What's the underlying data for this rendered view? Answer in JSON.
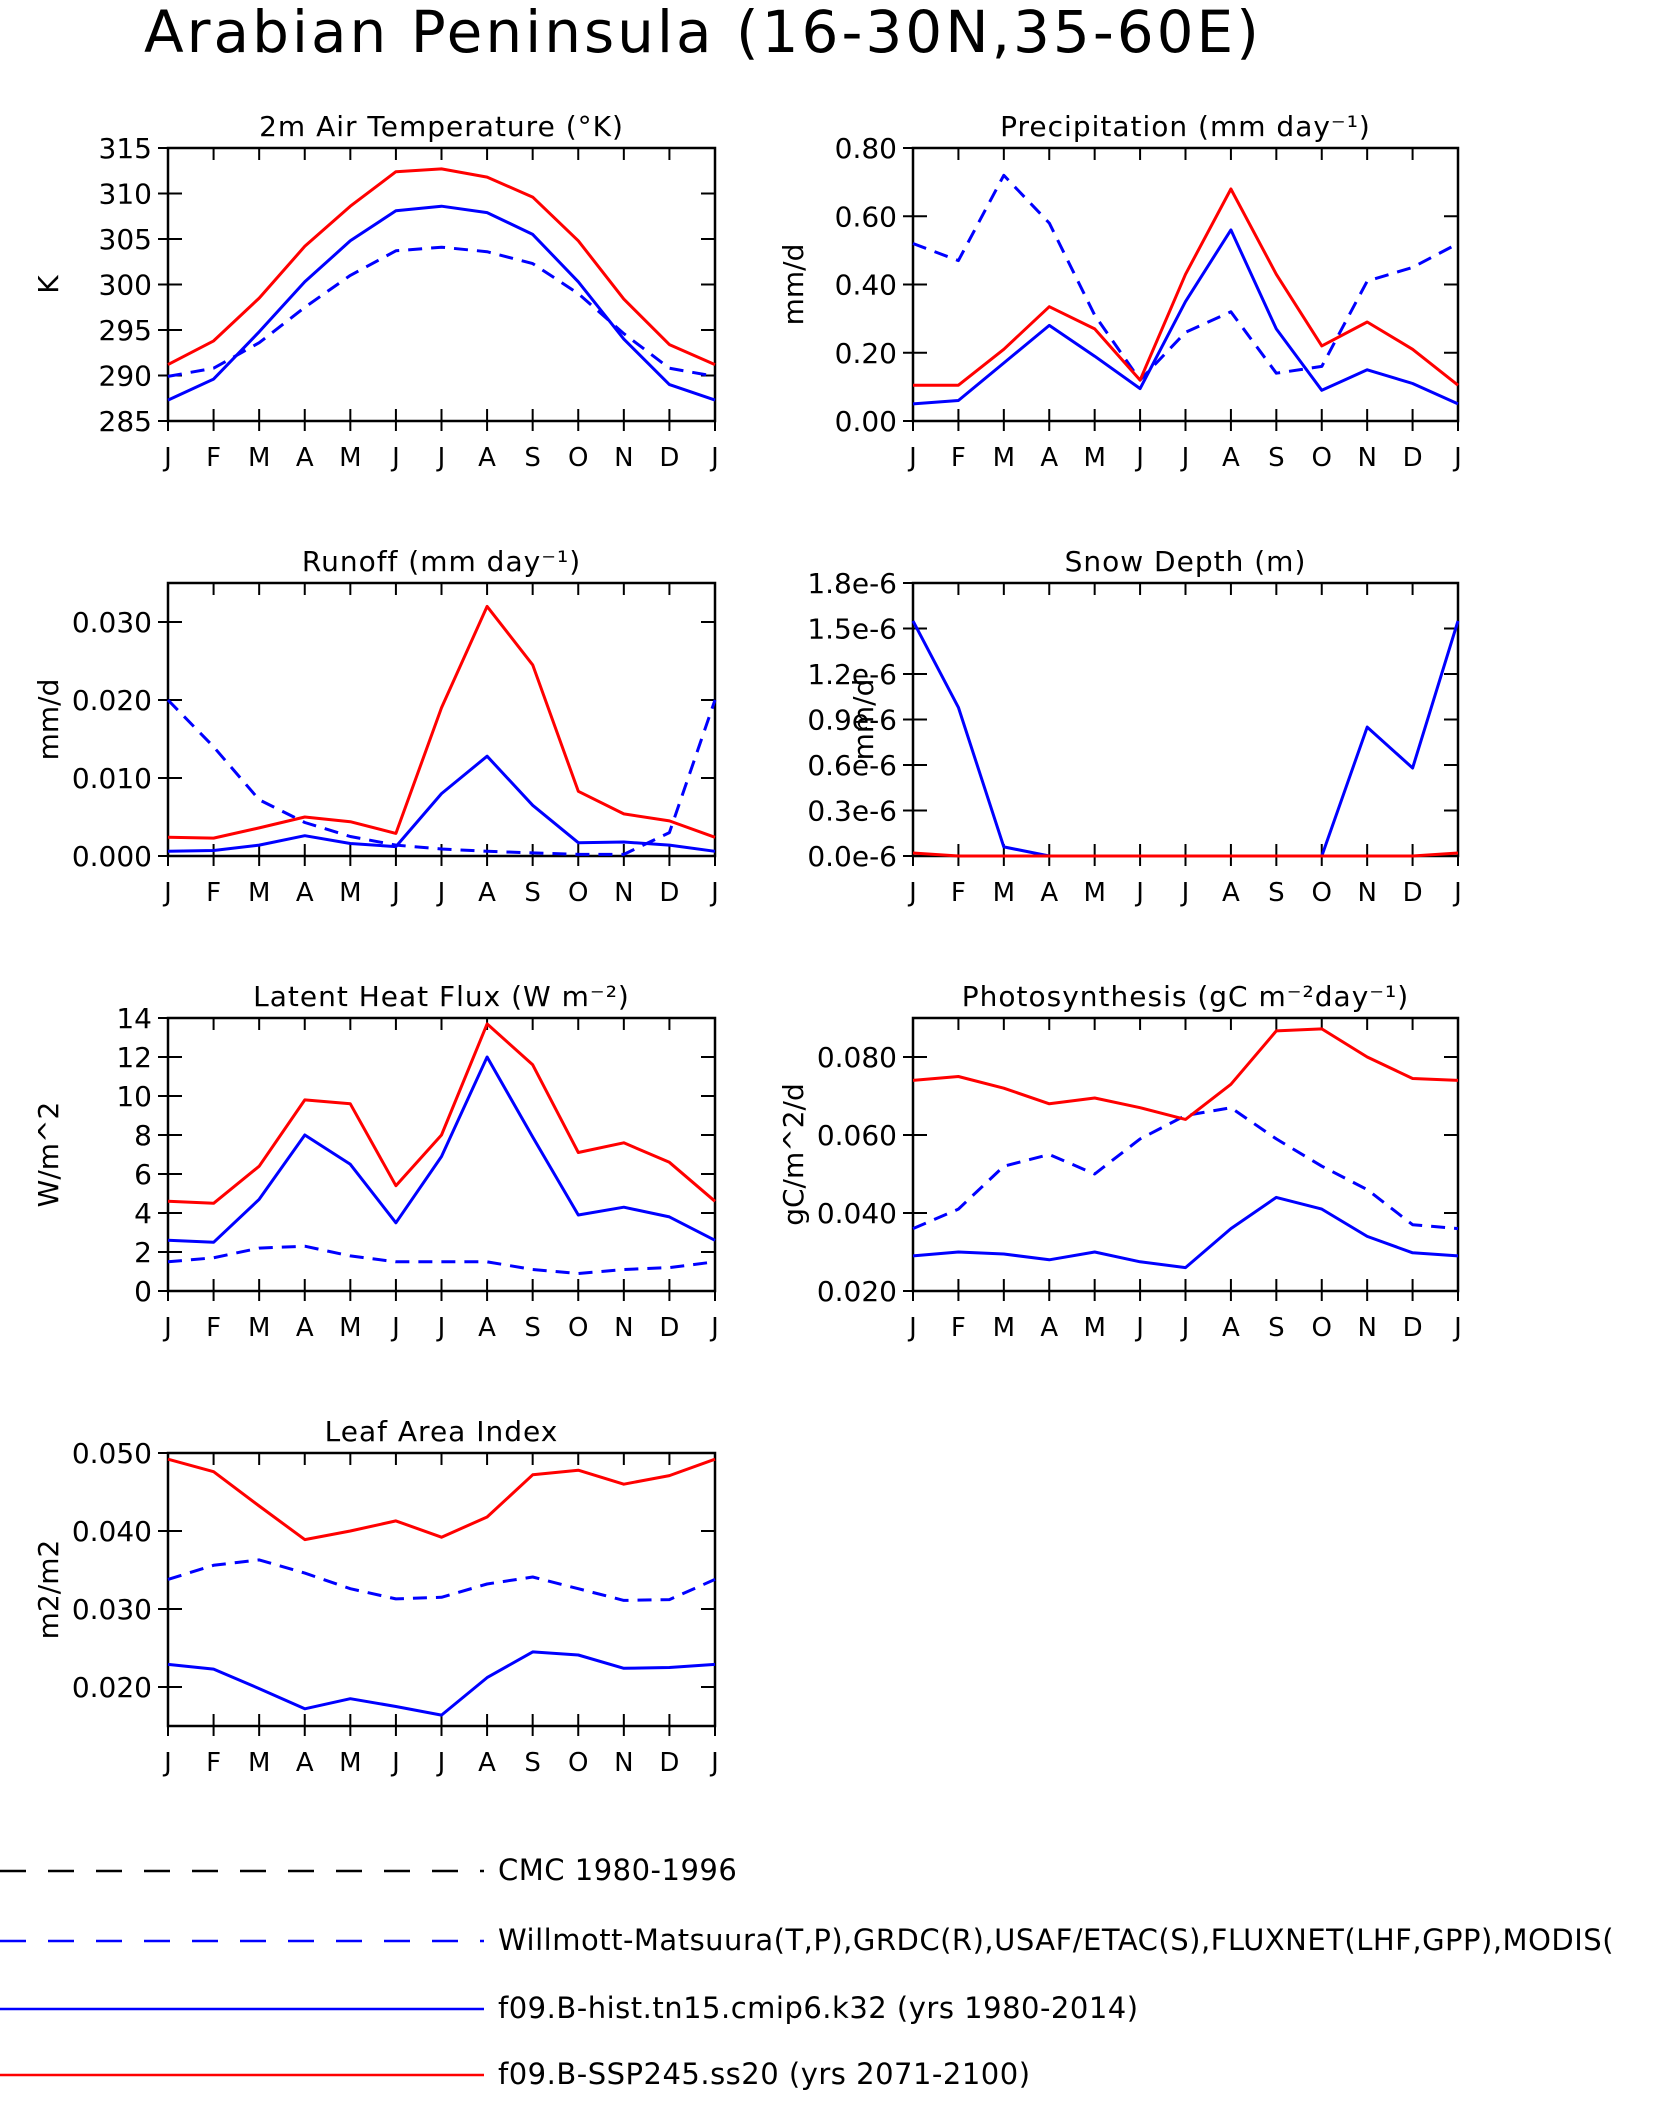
{
  "title": "Arabian Peninsula (16-30N,35-60E)",
  "months": [
    "J",
    "F",
    "M",
    "A",
    "M",
    "J",
    "J",
    "A",
    "S",
    "O",
    "N",
    "D",
    "J"
  ],
  "colors": {
    "obs": "#0000ff",
    "hist": "#0000ff",
    "ssp": "#ff0000",
    "cmc": "#000000"
  },
  "legend": [
    {
      "label": "CMC 1980-1996",
      "color": "#000000",
      "dash": true
    },
    {
      "label": "Willmott-Matsuura(T,P),GRDC(R),USAF/ETAC(S),FLUXNET(LHF,GPP),MODIS(",
      "color": "#0000ff",
      "dash": true
    },
    {
      "label": "f09.B-hist.tn15.cmip6.k32 (yrs 1980-2014)",
      "color": "#0000ff",
      "dash": false
    },
    {
      "label": "f09.B-SSP245.ss20 (yrs 2071-2100)",
      "color": "#ff0000",
      "dash": false
    }
  ],
  "chart_data": [
    {
      "type": "line",
      "title": "2m Air Temperature (°K)",
      "ylabel": "K",
      "ylim": [
        285,
        315
      ],
      "yticks": [
        "285",
        "290",
        "295",
        "300",
        "305",
        "310",
        "315"
      ],
      "series": [
        {
          "key": "obs",
          "values": [
            289.9,
            290.8,
            293.6,
            297.5,
            301.0,
            303.7,
            304.1,
            303.6,
            302.3,
            299.0,
            294.6,
            290.8,
            289.9
          ]
        },
        {
          "key": "hist",
          "values": [
            287.3,
            289.6,
            294.8,
            300.3,
            304.8,
            308.1,
            308.6,
            307.9,
            305.5,
            300.3,
            294.0,
            289.0,
            287.3
          ]
        },
        {
          "key": "ssp",
          "values": [
            291.2,
            293.8,
            298.5,
            304.2,
            308.6,
            312.4,
            312.7,
            311.8,
            309.6,
            304.8,
            298.4,
            293.4,
            291.2
          ]
        }
      ]
    },
    {
      "type": "line",
      "title": "Precipitation (mm day⁻¹)",
      "ylabel": "mm/d",
      "ylim": [
        0,
        0.8
      ],
      "yticks": [
        "0.00",
        "0.20",
        "0.40",
        "0.60",
        "0.80"
      ],
      "series": [
        {
          "key": "obs",
          "values": [
            0.52,
            0.47,
            0.72,
            0.58,
            0.31,
            0.12,
            0.26,
            0.32,
            0.14,
            0.16,
            0.41,
            0.45,
            0.52
          ]
        },
        {
          "key": "hist",
          "values": [
            0.05,
            0.06,
            0.17,
            0.28,
            0.19,
            0.095,
            0.35,
            0.56,
            0.27,
            0.09,
            0.15,
            0.11,
            0.05
          ]
        },
        {
          "key": "ssp",
          "values": [
            0.105,
            0.105,
            0.21,
            0.335,
            0.27,
            0.12,
            0.43,
            0.68,
            0.43,
            0.22,
            0.29,
            0.21,
            0.105
          ]
        }
      ]
    },
    {
      "type": "line",
      "title": "Runoff (mm day⁻¹)",
      "ylabel": "mm/d",
      "ylim": [
        0,
        0.035
      ],
      "yticks": [
        "0.000",
        "0.010",
        "0.020",
        "0.030"
      ],
      "series": [
        {
          "key": "obs",
          "values": [
            0.02,
            0.014,
            0.0072,
            0.0043,
            0.0025,
            0.0014,
            0.0009,
            0.0006,
            0.0004,
            0.0002,
            0.0002,
            0.003,
            0.02
          ]
        },
        {
          "key": "hist",
          "values": [
            0.0006,
            0.0007,
            0.0014,
            0.0026,
            0.0016,
            0.0012,
            0.008,
            0.0128,
            0.0065,
            0.0017,
            0.0018,
            0.0014,
            0.0006
          ]
        },
        {
          "key": "ssp",
          "values": [
            0.0024,
            0.0023,
            0.0036,
            0.005,
            0.0044,
            0.0029,
            0.019,
            0.032,
            0.0245,
            0.0083,
            0.0054,
            0.0045,
            0.0024
          ]
        }
      ]
    },
    {
      "type": "line",
      "title": "Snow Depth (m)",
      "ylabel": "mm/d",
      "ylim": [
        0,
        1.8
      ],
      "yticks": [
        "0.0e-6",
        "0.3e-6",
        "0.6e-6",
        "0.9e-6",
        "1.2e-6",
        "1.5e-6",
        "1.8e-6"
      ],
      "series": [
        {
          "key": "hist",
          "values": [
            1.55,
            0.98,
            0.06,
            0,
            0,
            0,
            0,
            0,
            0,
            0,
            0.85,
            0.58,
            1.55
          ]
        },
        {
          "key": "ssp",
          "values": [
            0.02,
            0,
            0,
            0,
            0,
            0,
            0,
            0,
            0,
            0,
            0,
            0,
            0.02
          ]
        }
      ]
    },
    {
      "type": "line",
      "title": "Latent Heat Flux (W m⁻²)",
      "ylabel": "W/m^2",
      "ylim": [
        0,
        14
      ],
      "yticks": [
        "0",
        "2",
        "4",
        "6",
        "8",
        "10",
        "12",
        "14"
      ],
      "series": [
        {
          "key": "obs",
          "values": [
            1.5,
            1.7,
            2.2,
            2.3,
            1.8,
            1.5,
            1.5,
            1.5,
            1.1,
            0.9,
            1.1,
            1.2,
            1.5
          ]
        },
        {
          "key": "hist",
          "values": [
            2.6,
            2.5,
            4.7,
            8.0,
            6.5,
            3.5,
            6.9,
            12.0,
            7.9,
            3.9,
            4.3,
            3.8,
            2.6
          ]
        },
        {
          "key": "ssp",
          "values": [
            4.6,
            4.5,
            6.4,
            9.8,
            9.6,
            5.4,
            8.0,
            13.7,
            11.6,
            7.1,
            7.6,
            6.6,
            4.6
          ]
        }
      ]
    },
    {
      "type": "line",
      "title": "Photosynthesis (gC m⁻²day⁻¹)",
      "ylabel": "gC/m^2/d",
      "ylim": [
        0.02,
        0.09
      ],
      "yticks": [
        "0.020",
        "0.040",
        "0.060",
        "0.080"
      ],
      "series": [
        {
          "key": "obs",
          "values": [
            0.036,
            0.041,
            0.052,
            0.055,
            0.05,
            0.059,
            0.065,
            0.067,
            0.059,
            0.052,
            0.046,
            0.037,
            0.036
          ]
        },
        {
          "key": "hist",
          "values": [
            0.029,
            0.03,
            0.0295,
            0.028,
            0.03,
            0.0275,
            0.026,
            0.036,
            0.044,
            0.041,
            0.034,
            0.0298,
            0.029
          ]
        },
        {
          "key": "ssp",
          "values": [
            0.074,
            0.075,
            0.072,
            0.068,
            0.0695,
            0.067,
            0.064,
            0.073,
            0.0867,
            0.0872,
            0.08,
            0.0745,
            0.074
          ]
        }
      ]
    },
    {
      "type": "line",
      "title": "Leaf Area Index",
      "ylabel": "m2/m2",
      "ylim": [
        0.015,
        0.05
      ],
      "yticks": [
        "0.020",
        "0.030",
        "0.040",
        "0.050"
      ],
      "series": [
        {
          "key": "obs",
          "values": [
            0.0338,
            0.0356,
            0.0363,
            0.0346,
            0.0326,
            0.0313,
            0.0315,
            0.0332,
            0.0341,
            0.0326,
            0.0311,
            0.0312,
            0.0338
          ]
        },
        {
          "key": "hist",
          "values": [
            0.0229,
            0.0223,
            0.0198,
            0.0172,
            0.0185,
            0.0175,
            0.0164,
            0.0212,
            0.0245,
            0.0241,
            0.0224,
            0.0225,
            0.0229
          ]
        },
        {
          "key": "ssp",
          "values": [
            0.0492,
            0.0476,
            0.0432,
            0.0389,
            0.04,
            0.0413,
            0.0392,
            0.0418,
            0.0472,
            0.0478,
            0.046,
            0.0471,
            0.0492
          ]
        }
      ]
    }
  ]
}
